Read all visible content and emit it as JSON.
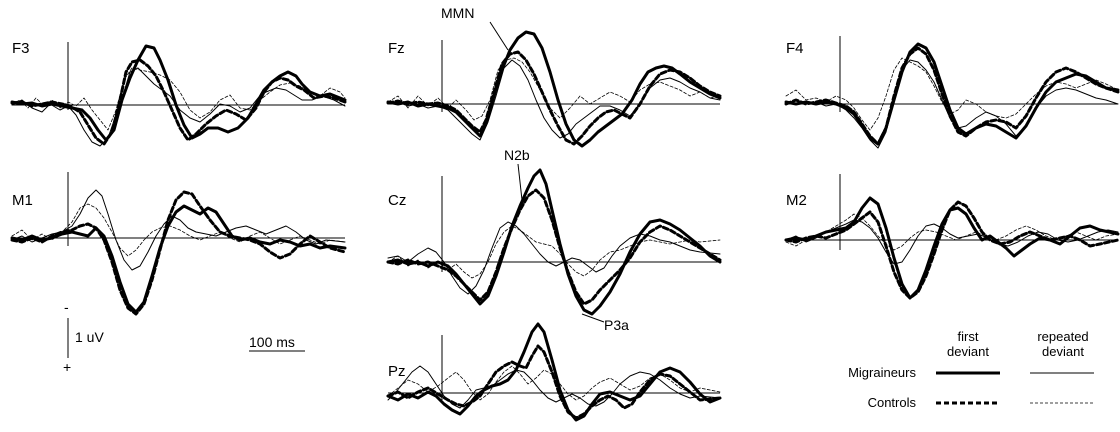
{
  "figure": {
    "panels": [
      {
        "label": "F3"
      },
      {
        "label": "Fz"
      },
      {
        "label": "F4"
      },
      {
        "label": "M1"
      },
      {
        "label": "Cz"
      },
      {
        "label": "M2"
      },
      {
        "label": "Pz"
      }
    ],
    "annotations": {
      "mmn": "MMN",
      "n2b": "N2b",
      "p3a": "P3a"
    },
    "scale": {
      "amplitude_label": "1 uV",
      "minus_sign": "-",
      "plus_sign": "+",
      "time_label": "100 ms"
    },
    "legend": {
      "col_first_line1": "first",
      "col_first_line2": "deviant",
      "col_repeated_line1": "repeated",
      "col_repeated_line2": "deviant",
      "row_migraineurs": "Migraineurs",
      "row_controls": "Controls"
    },
    "series_styles": [
      {
        "id": "migraineurs-first",
        "stroke": "#000000",
        "width": 3,
        "dash": ""
      },
      {
        "id": "controls-first",
        "stroke": "#000000",
        "width": 3,
        "dash": "5,3"
      },
      {
        "id": "migraineurs-repeated",
        "stroke": "#000000",
        "width": 1,
        "dash": ""
      },
      {
        "id": "controls-repeated",
        "stroke": "#000000",
        "width": 0.8,
        "dash": "3,2"
      }
    ]
  }
}
